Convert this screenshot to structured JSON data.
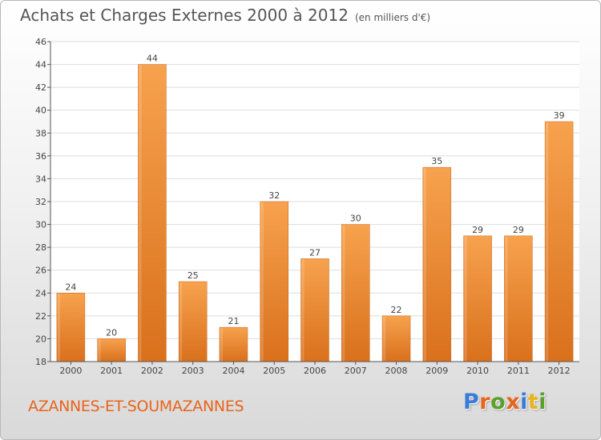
{
  "header": {
    "title": "Achats et Charges Externes 2000 à 2012",
    "subtitle": "(en milliers d'€)"
  },
  "footer": {
    "commune": "AZANNES-ET-SOUMAZANNES",
    "brand": "Proxiti",
    "brand_colors": [
      "#3a7bd5",
      "#e8641b",
      "#5aa02c",
      "#e8641b",
      "#3a7bd5",
      "#e8b21b",
      "#5aa02c"
    ]
  },
  "colors": {
    "bar_light": "#f7a24e",
    "bar_dark": "#d9701c",
    "accent": "#e8641b",
    "grid": "#dddddd",
    "axis": "#555555"
  },
  "chart_data": {
    "type": "bar",
    "title": "Achats et Charges Externes 2000 à 2012",
    "subtitle": "(en milliers d'€)",
    "xlabel": "",
    "ylabel": "",
    "categories": [
      "2000",
      "2001",
      "2002",
      "2003",
      "2004",
      "2005",
      "2006",
      "2007",
      "2008",
      "2009",
      "2010",
      "2011",
      "2012"
    ],
    "values": [
      24,
      20,
      44,
      25,
      21,
      32,
      27,
      30,
      22,
      35,
      29,
      29,
      39
    ],
    "ylim": [
      18,
      46
    ],
    "yticks": [
      18,
      20,
      22,
      24,
      26,
      28,
      30,
      32,
      34,
      36,
      38,
      40,
      42,
      44,
      46
    ],
    "grid": true,
    "data_labels": true
  }
}
